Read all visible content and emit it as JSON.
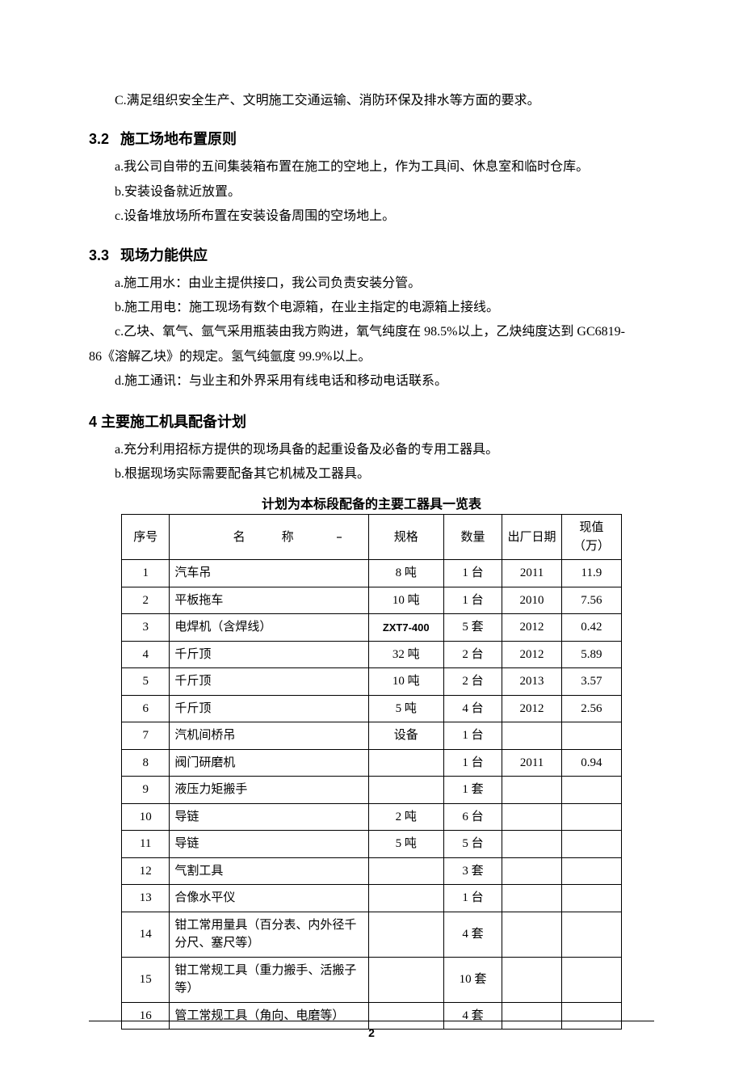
{
  "para_top": "C.满足组织安全生产、文明施工交通运输、消防环保及排水等方面的要求。",
  "s32": {
    "num": "3.2",
    "title": "施工场地布置原则",
    "a": "a.我公司自带的五间集装箱布置在施工的空地上，作为工具间、休息室和临时仓库。",
    "b": "b.安装设备就近放置。",
    "c": "c.设备堆放场所布置在安装设备周围的空场地上。"
  },
  "s33": {
    "num": "3.3",
    "title": "现场力能供应",
    "a": "a.施工用水：由业主提供接口，我公司负责安装分管。",
    "b": "b.施工用电：施工现场有数个电源箱，在业主指定的电源箱上接线。",
    "c1": "c.乙块、氧气、氩气采用瓶装由我方购进，氧气纯度在 98.5%以上，乙炔纯度达到 GC6819-",
    "c2": "86《溶解乙块》的规定。氢气纯氩度 99.9%以上。",
    "d": "d.施工通讯：与业主和外界采用有线电话和移动电话联系。"
  },
  "s4": {
    "title": "4 主要施工机具配备计划",
    "a": "a.充分利用招标方提供的现场具备的起重设备及必备的专用工器具。",
    "b": "b.根据现场实际需要配备其它机械及工器具。"
  },
  "table": {
    "title": "计划为本标段配备的主要工器具一览表",
    "headers": {
      "seq": "序号",
      "name": "名称",
      "spec": "规格",
      "qty": "数量",
      "date": "出厂日期",
      "val": "现值（万）"
    },
    "rows": [
      {
        "seq": "1",
        "name": "汽车吊",
        "spec": "8 吨",
        "qty": "1 台",
        "date": "2011",
        "val": "11.9"
      },
      {
        "seq": "2",
        "name": "平板拖车",
        "spec": "10 吨",
        "qty": "1 台",
        "date": "2010",
        "val": "7.56"
      },
      {
        "seq": "3",
        "name": "电焊机（含焊线）",
        "spec": "ZXT7-400",
        "spec_small": true,
        "qty": "5 套",
        "date": "2012",
        "val": "0.42"
      },
      {
        "seq": "4",
        "name": "千斤顶",
        "spec": "32 吨",
        "qty": "2 台",
        "date": "2012",
        "val": "5.89"
      },
      {
        "seq": "5",
        "name": "千斤顶",
        "spec": "10 吨",
        "qty": "2 台",
        "date": "2013",
        "val": "3.57"
      },
      {
        "seq": "6",
        "name": "千斤顶",
        "spec": "5 吨",
        "qty": "4 台",
        "date": "2012",
        "val": "2.56"
      },
      {
        "seq": "7",
        "name": "汽机间桥吊",
        "spec": "设备",
        "qty": "1 台",
        "date": "",
        "val": ""
      },
      {
        "seq": "8",
        "name": "阀门研磨机",
        "spec": "",
        "qty": "1 台",
        "date": "2011",
        "val": "0.94"
      },
      {
        "seq": "9",
        "name": "液压力矩搬手",
        "spec": "",
        "qty": "1 套",
        "date": "",
        "val": ""
      },
      {
        "seq": "10",
        "name": "导链",
        "spec": "2 吨",
        "qty": "6 台",
        "date": "",
        "val": ""
      },
      {
        "seq": "11",
        "name": "导链",
        "spec": "5 吨",
        "qty": "5 台",
        "date": "",
        "val": ""
      },
      {
        "seq": "12",
        "name": "气割工具",
        "spec": "",
        "qty": "3 套",
        "date": "",
        "val": ""
      },
      {
        "seq": "13",
        "name": "合像水平仪",
        "spec": "",
        "qty": "1 台",
        "date": "",
        "val": ""
      },
      {
        "seq": "14",
        "name": "钳工常用量具（百分表、内外径千分尺、塞尺等）",
        "spec": "",
        "qty": "4 套",
        "date": "",
        "val": ""
      },
      {
        "seq": "15",
        "name": "钳工常规工具（重力搬手、活搬子等）",
        "spec": "",
        "qty": "10 套",
        "date": "",
        "val": "",
        "tall": true
      },
      {
        "seq": "16",
        "name": "管工常规工具（角向、电磨等）",
        "spec": "",
        "qty": "4 套",
        "date": "",
        "val": ""
      }
    ]
  },
  "page_number": "2"
}
